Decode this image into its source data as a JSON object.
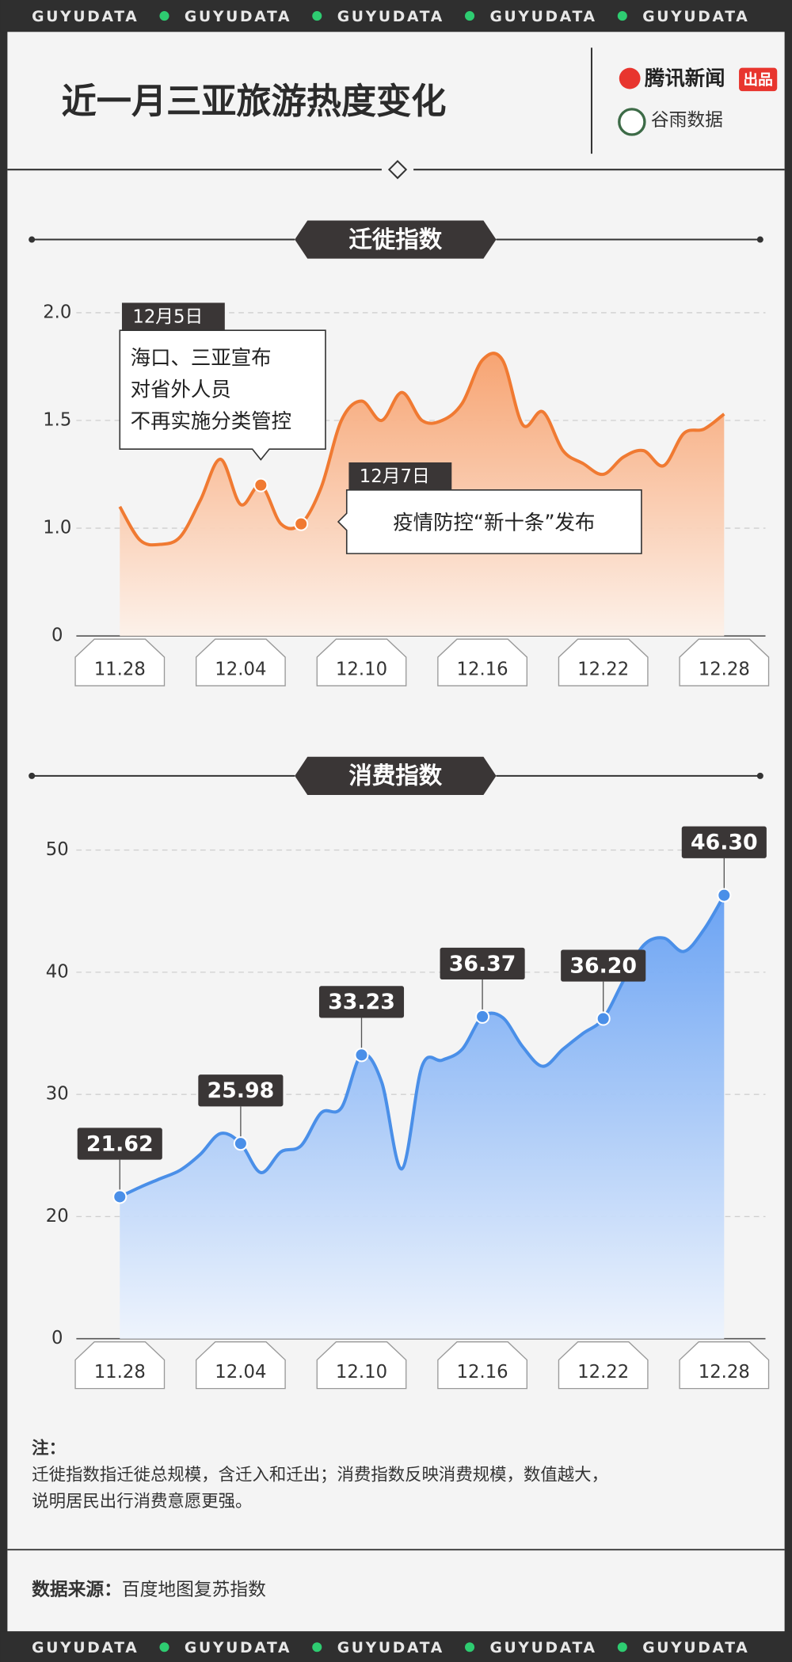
{
  "banner": "GUYUDATA",
  "header": {
    "title": "近一月三亚旅游热度变化",
    "logo1": "腾讯新闻",
    "logo1_tag": "出品",
    "logo2": "谷雨数据"
  },
  "chart_data": [
    {
      "type": "line",
      "title": "迁徙指数",
      "categories": [
        "11.28",
        null,
        null,
        null,
        null,
        null,
        "12.04",
        null,
        null,
        null,
        null,
        null,
        "12.10",
        null,
        null,
        null,
        null,
        null,
        "12.16",
        null,
        null,
        null,
        null,
        null,
        "12.22",
        null,
        null,
        null,
        null,
        null,
        "12.28"
      ],
      "values": [
        1.1,
        0.89,
        0.85,
        0.92,
        1.13,
        1.32,
        1.11,
        1.2,
        1.02,
        1.02,
        1.19,
        1.5,
        1.59,
        1.5,
        1.63,
        1.5,
        1.5,
        1.58,
        1.78,
        1.78,
        1.48,
        1.54,
        1.36,
        1.3,
        1.25,
        1.33,
        1.36,
        1.29,
        1.44,
        1.46,
        1.53
      ],
      "color": "#f07a32",
      "ylim": [
        0,
        2
      ],
      "yticks": [
        0,
        {
          "value": 1,
          "label": "1.0"
        },
        1.5,
        {
          "value": 2,
          "label": "2.0"
        }
      ],
      "broken_axis": true,
      "grid": true,
      "annotations": [
        {
          "index": 7,
          "label": "12月5日",
          "text": [
            "海口、三亚宣布",
            "对省外人员",
            "不再实施分类管控"
          ]
        },
        {
          "index": 9,
          "label": "12月7日",
          "text": [
            "疫情防控“新十条”发布"
          ]
        }
      ]
    },
    {
      "type": "line",
      "title": "消费指数",
      "categories": [
        "11.28",
        null,
        null,
        null,
        null,
        null,
        "12.04",
        null,
        null,
        null,
        null,
        null,
        "12.10",
        null,
        null,
        null,
        null,
        null,
        "12.16",
        null,
        null,
        null,
        null,
        null,
        "12.22",
        null,
        null,
        null,
        null,
        null,
        "12.28"
      ],
      "values": [
        21.62,
        22.4,
        23.1,
        23.8,
        25.1,
        26.8,
        25.98,
        23.6,
        25.3,
        25.8,
        28.5,
        28.9,
        33.23,
        31.0,
        23.9,
        32.3,
        32.8,
        33.7,
        36.37,
        36.3,
        33.9,
        32.3,
        33.7,
        35.0,
        36.2,
        39.3,
        42.2,
        42.8,
        41.7,
        43.5,
        46.3
      ],
      "value_labels": [
        "21.62",
        null,
        null,
        null,
        null,
        null,
        "25.98",
        null,
        null,
        null,
        null,
        null,
        "33.23",
        null,
        null,
        null,
        null,
        null,
        "36.37",
        null,
        null,
        null,
        null,
        null,
        "36.20",
        null,
        null,
        null,
        null,
        null,
        "46.30"
      ],
      "color": "#4a8fe8",
      "ylim": [
        0,
        50
      ],
      "yticks": [
        0,
        20,
        30,
        40,
        50
      ],
      "broken_axis": true,
      "grid": true
    }
  ],
  "note": {
    "label": "注：",
    "lines": [
      "迁徙指数指迁徙总规模，含迁入和迁出；消费指数反映消费规模，数值越大，",
      "说明居民出行消费意愿更强。"
    ]
  },
  "source": {
    "label": "数据来源：",
    "text": "百度地图复苏指数"
  }
}
